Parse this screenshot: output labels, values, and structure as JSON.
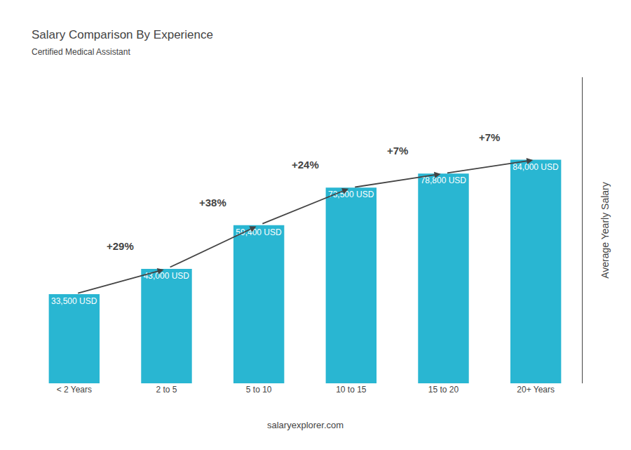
{
  "chart_data": {
    "type": "bar",
    "title": "Salary Comparison By Experience",
    "subtitle": "Certified Medical Assistant",
    "ylabel": "Average Yearly Salary",
    "footer": "salaryexplorer.com",
    "categories": [
      "< 2 Years",
      "2 to 5",
      "5 to 10",
      "10 to 15",
      "15 to 20",
      "20+ Years"
    ],
    "values": [
      33500,
      43000,
      59400,
      73500,
      78800,
      84000
    ],
    "value_labels": [
      "33,500 USD",
      "43,000 USD",
      "59,400 USD",
      "73,500 USD",
      "78,800 USD",
      "84,000 USD"
    ],
    "data_labels": true,
    "annotations": [
      "+29%",
      "+38%",
      "+24%",
      "+7%",
      "+7%"
    ],
    "color": "#29B6D2",
    "ylim": [
      0,
      115000
    ],
    "yticks": [],
    "tick_labels": "x",
    "grid": false
  }
}
